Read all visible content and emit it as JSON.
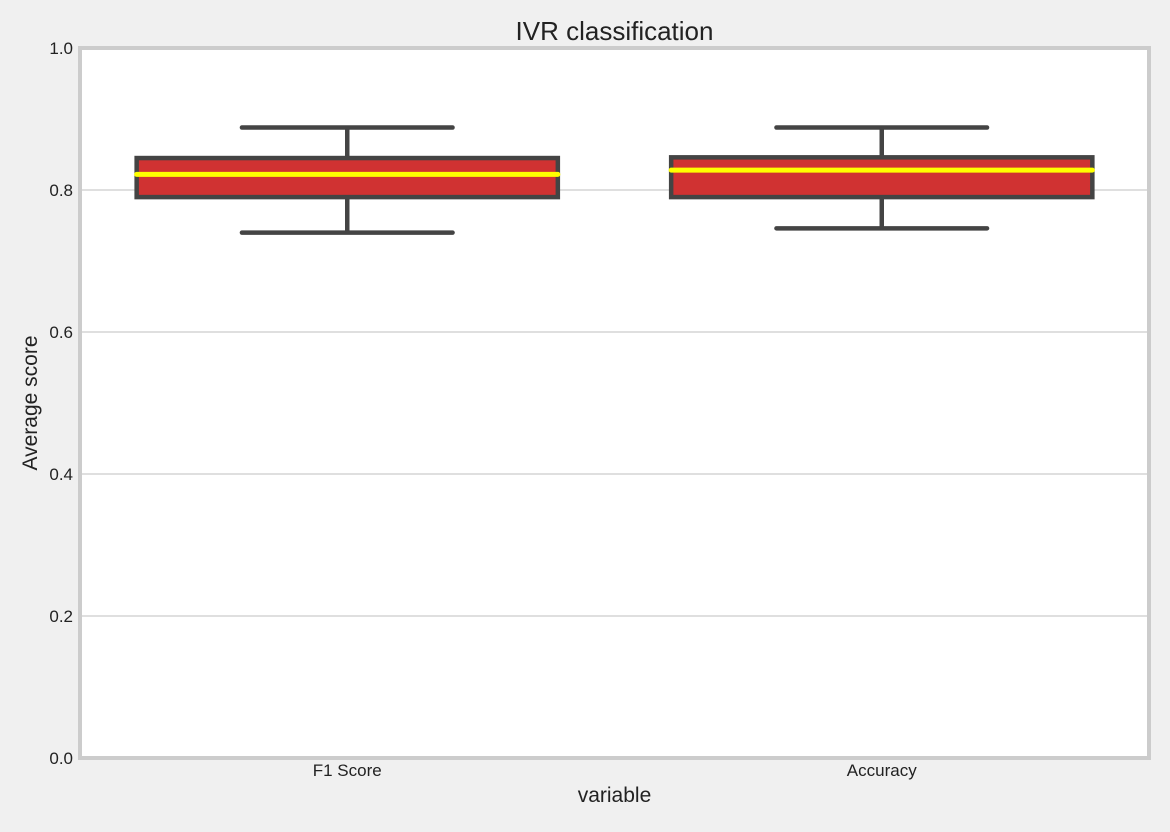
{
  "chart_data": {
    "type": "box",
    "title": "IVR classification",
    "xlabel": "variable",
    "ylabel": "Average score",
    "ylim": [
      0.0,
      1.0
    ],
    "yticks": [
      0.0,
      0.2,
      0.4,
      0.6,
      0.8,
      1.0
    ],
    "ytick_labels": [
      "0.0",
      "0.2",
      "0.4",
      "0.6",
      "0.8",
      "1.0"
    ],
    "grid": "horizontal",
    "categories": [
      "F1 Score",
      "Accuracy"
    ],
    "boxes": [
      {
        "category": "F1 Score",
        "whisker_low": 0.74,
        "q1": 0.79,
        "median": 0.822,
        "q3": 0.845,
        "whisker_high": 0.888
      },
      {
        "category": "Accuracy",
        "whisker_low": 0.746,
        "q1": 0.79,
        "median": 0.828,
        "q3": 0.846,
        "whisker_high": 0.888
      }
    ],
    "colors": {
      "box_fill": "#d03232",
      "box_edge": "#444444",
      "median": "#ffff00",
      "grid": "#cccccc",
      "axes_border": "#cccccc",
      "plot_bg": "#ffffff",
      "figure_bg": "#f0f0f0",
      "text": "#222222"
    }
  }
}
